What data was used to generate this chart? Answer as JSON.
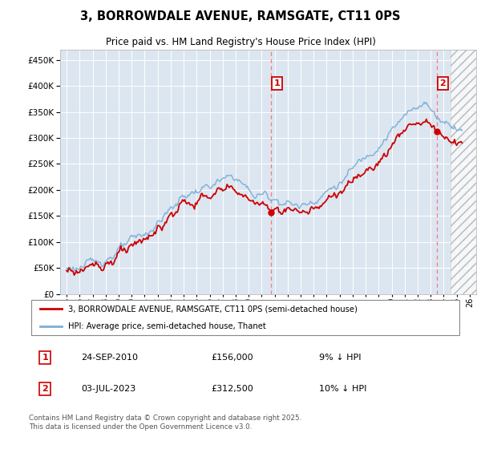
{
  "title": "3, BORROWDALE AVENUE, RAMSGATE, CT11 0PS",
  "subtitle": "Price paid vs. HM Land Registry's House Price Index (HPI)",
  "property_label": "3, BORROWDALE AVENUE, RAMSGATE, CT11 0PS (semi-detached house)",
  "hpi_label": "HPI: Average price, semi-detached house, Thanet",
  "transaction1_date": "24-SEP-2010",
  "transaction1_price": "£156,000",
  "transaction1_hpi": "9% ↓ HPI",
  "transaction2_date": "03-JUL-2023",
  "transaction2_price": "£312,500",
  "transaction2_hpi": "10% ↓ HPI",
  "footnote": "Contains HM Land Registry data © Crown copyright and database right 2025.\nThis data is licensed under the Open Government Licence v3.0.",
  "property_color": "#cc0000",
  "hpi_color": "#7aaed6",
  "background_color": "#dce6f1",
  "plot_bg_color": "#dce6f1",
  "marker1_x": 2010.73,
  "marker1_y": 156000,
  "marker2_x": 2023.5,
  "marker2_y": 312500,
  "ylim": [
    0,
    470000
  ],
  "xlim_start": 1994.5,
  "xlim_end": 2026.5,
  "hatch_start": 2024.5
}
